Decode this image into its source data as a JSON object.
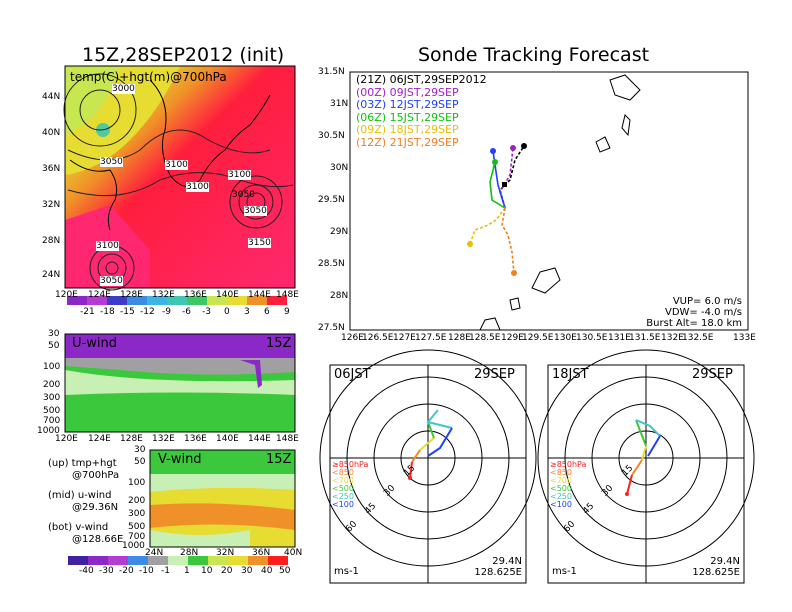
{
  "left": {
    "title": "15Z,28SEP2012 (init)",
    "map_label": "temp(C)+hgt(m)@700hPa",
    "lat_ticks": [
      "44N",
      "40N",
      "36N",
      "32N",
      "28N",
      "24N"
    ],
    "lon_ticks": [
      "120E",
      "124E",
      "128E",
      "132E",
      "136E",
      "140E",
      "144E",
      "148E"
    ],
    "contour_labels": [
      "3000",
      "3050",
      "3100",
      "3100",
      "3100",
      "3050",
      "3150",
      "3100",
      "3050",
      "3050"
    ],
    "temp_colorbar": [
      "-21",
      "-18",
      "-15",
      "-12",
      "-9",
      "-6",
      "-3",
      "0",
      "3",
      "6",
      "9"
    ],
    "u_panel": {
      "title": "U-wind",
      "time": "15Z",
      "p_ticks": [
        "30",
        "50",
        "100",
        "200",
        "300",
        "500",
        "700",
        "1000"
      ],
      "x_ticks": [
        "120E",
        "124E",
        "128E",
        "132E",
        "136E",
        "140E",
        "144E",
        "148E"
      ]
    },
    "v_panel": {
      "title": "V-wind",
      "time": "15Z",
      "p_ticks": [
        "30",
        "50",
        "100",
        "200",
        "300",
        "500",
        "700",
        "1000"
      ],
      "x_ticks": [
        "24N",
        "28N",
        "32N",
        "36N",
        "40N"
      ]
    },
    "notes": [
      "(up) tmp+hgt",
      "@700hPa",
      "(mid) u-wind",
      "@29.36N",
      "(bot) v-wind",
      "@128.66E"
    ],
    "wind_colorbar": [
      "-40",
      "-30",
      "-20",
      "-10",
      "-1",
      "1",
      "10",
      "20",
      "30",
      "40",
      "50",
      "60"
    ]
  },
  "right": {
    "title": "Sonde Tracking Forecast",
    "lat_ticks": [
      "31.5N",
      "31N",
      "30.5N",
      "30N",
      "29.5N",
      "29N",
      "28.5N",
      "28N",
      "27.5N"
    ],
    "lon_ticks": [
      "126E",
      "126.5E",
      "127E",
      "127.5E",
      "128E",
      "128.5E",
      "129E",
      "129.5E",
      "130E",
      "130.5E",
      "131E",
      "131.5E",
      "132E",
      "132.5E",
      "133E"
    ],
    "legend": [
      {
        "z": "(21Z)",
        "t": "06JST,29SEP2012",
        "color": "#000000"
      },
      {
        "z": "(00Z)",
        "t": "09JST,29SEP",
        "color": "#a020c8"
      },
      {
        "z": "(03Z)",
        "t": "12JST,29SEP",
        "color": "#2040ff"
      },
      {
        "z": "(06Z)",
        "t": "15JST,29SEP",
        "color": "#10c010"
      },
      {
        "z": "(09Z)",
        "t": "18JST,29SEP",
        "color": "#e8c000"
      },
      {
        "z": "(12Z)",
        "t": "21JST,29SEP",
        "color": "#f08020"
      }
    ],
    "params": [
      "VUP= 6.0 m/s",
      "VDW= -4.0 m/s",
      "Burst Alt= 18.0 km"
    ]
  },
  "hodo1": {
    "time": "06JST",
    "date": "29SEP",
    "rings": [
      "15",
      "30",
      "45",
      "60"
    ],
    "levels": [
      "≥850hPa",
      "<850",
      "<700",
      "<500",
      "<250",
      "<100"
    ],
    "unit": "ms-1",
    "lat": "29.4N",
    "lon": "128.625E"
  },
  "hodo2": {
    "time": "18JST",
    "date": "29SEP",
    "rings": [
      "15",
      "30",
      "45",
      "60"
    ],
    "levels": [
      "≥850hPa",
      "<850",
      "<700",
      "<500",
      "<250",
      "<100"
    ],
    "unit": "ms-1",
    "lat": "29.4N",
    "lon": "128.625E"
  },
  "colors": {
    "purple": "#8c28c8",
    "gray": "#a0a0a0",
    "pale_green": "#c8f0b4",
    "green": "#3cc83c",
    "hot_pink": "#ff2870",
    "red": "#ff1e1e",
    "yellow": "#e6dc32",
    "orange": "#f09028"
  }
}
